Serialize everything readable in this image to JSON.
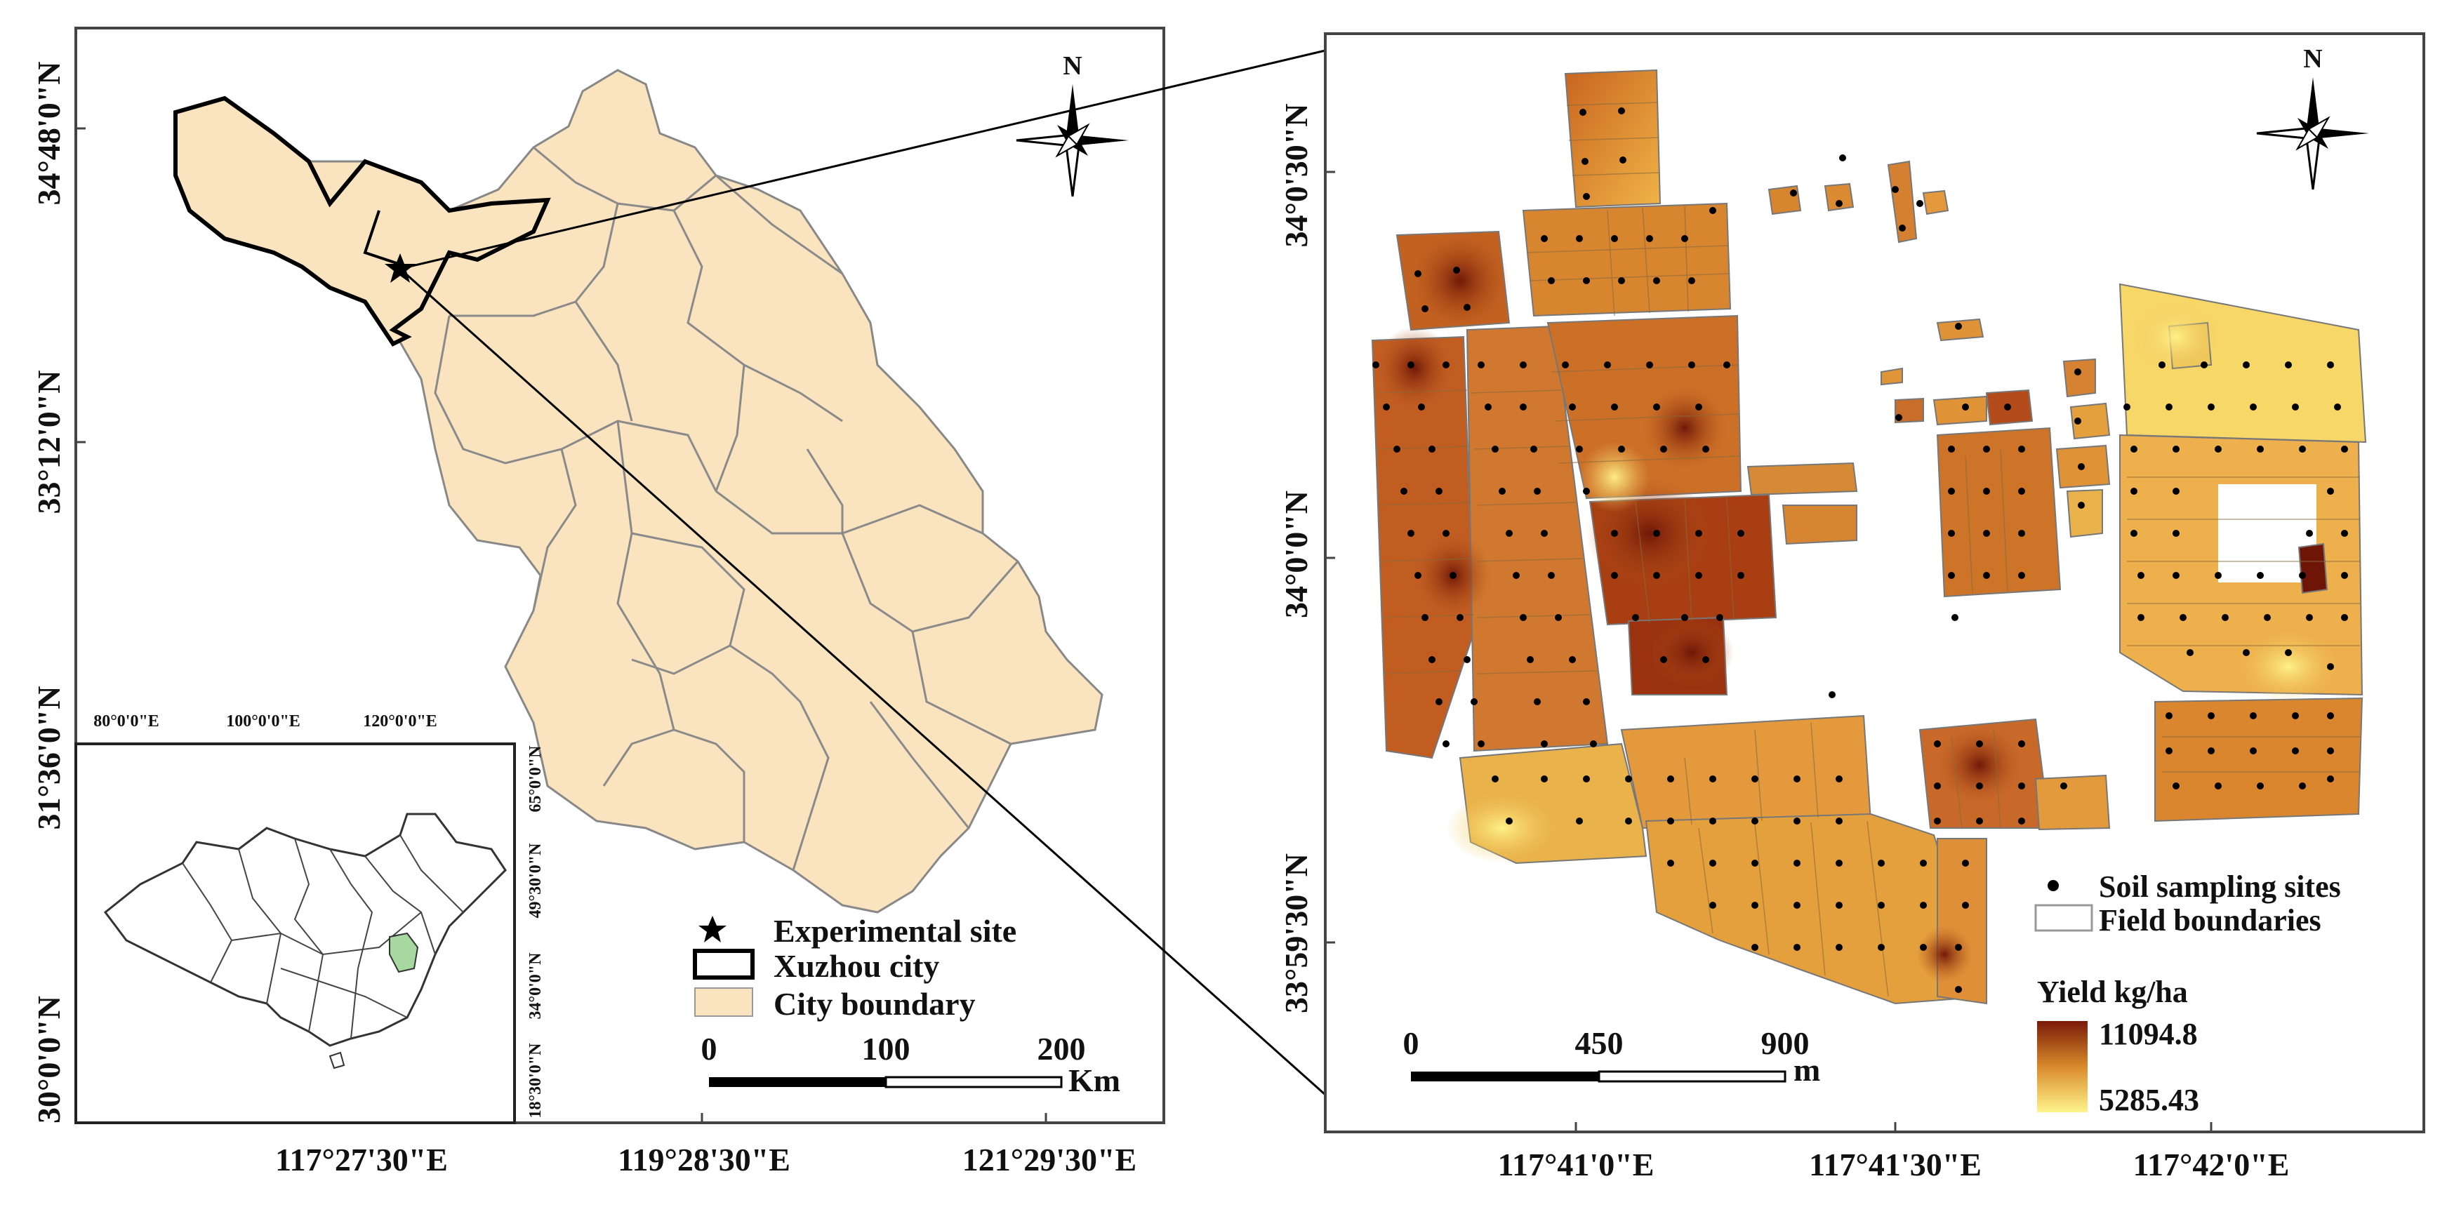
{
  "left_map": {
    "lat_labels": [
      "34°48'0\"N",
      "33°12'0\"N",
      "31°36'0\"N",
      "30°0'0\"N"
    ],
    "lon_labels": [
      "117°27'30\"E",
      "119°28'30\"E",
      "121°29'30\"E"
    ],
    "north_label": "N",
    "legend": {
      "site_label": "Experimental site",
      "xuzhou_label": "Xuzhou city",
      "boundary_label": "City boundary"
    },
    "scale": {
      "ticks": [
        "0",
        "100",
        "200"
      ],
      "unit": "Km"
    },
    "colors": {
      "province_fill": "#fae3bf",
      "boundary": "#555555",
      "xuzhou_outline": "#000000"
    }
  },
  "inset": {
    "top_labels": [
      "80°0'0\"E",
      "100°0'0\"E",
      "120°0'0\"E"
    ],
    "side_labels": [
      "65°0'0\"N",
      "49°30'0\"N",
      "34°0'0\"N",
      "18°30'0\"N"
    ],
    "colors": {
      "highlight": "#a6d8a0"
    }
  },
  "right_map": {
    "lat_labels": [
      "34°0'30\"N",
      "34°0'0\"N",
      "33°59'30\"N"
    ],
    "lon_labels": [
      "117°41'0\"E",
      "117°41'30\"E",
      "117°42'0\"E"
    ],
    "north_label": "N",
    "legend": {
      "soil_label": "Soil sampling sites",
      "field_label": "Field boundaries",
      "yield_title": "Yield kg/ha",
      "yield_max": "11094.8",
      "yield_min": "5285.43"
    },
    "scale": {
      "ticks": [
        "0",
        "450",
        "900"
      ],
      "unit": "m"
    },
    "colors": {
      "yield_high": "#7a1a08",
      "yield_mid": "#d98a2b",
      "yield_low": "#fff48c"
    }
  }
}
